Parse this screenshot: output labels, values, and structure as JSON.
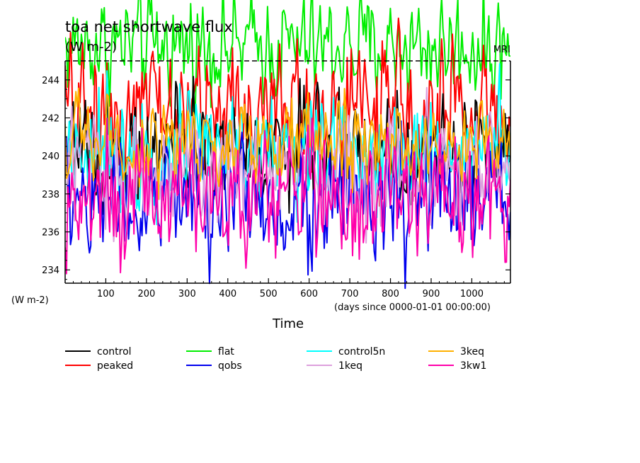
{
  "chart_data": {
    "type": "line",
    "title": "toa net shortwave flux",
    "subtitle": "(W m-2)",
    "model_label": "MRI",
    "ylabel": "(W m-2)",
    "xlabel": "Time",
    "x_unit_note": "(days since 0000-01-01 00:00:00)",
    "xlim": [
      0,
      1095
    ],
    "ylim": [
      233.3,
      245.0
    ],
    "x_ticks": [
      100,
      200,
      300,
      400,
      500,
      600,
      700,
      800,
      900,
      1000
    ],
    "y_ticks": [
      234,
      236,
      238,
      240,
      242,
      244
    ],
    "reference_line": 245,
    "legend_placement": "bottom",
    "series": [
      {
        "name": "control",
        "color": "#000000",
        "mean": 240.3,
        "spread": 1.6,
        "clip_top": false
      },
      {
        "name": "peaked",
        "color": "#ff0000",
        "mean": 242.4,
        "spread": 2.0,
        "clip_top": true
      },
      {
        "name": "flat",
        "color": "#00ee00",
        "mean": 245.8,
        "spread": 1.6,
        "clip_top": true
      },
      {
        "name": "qobs",
        "color": "#0000ee",
        "mean": 237.6,
        "spread": 1.9,
        "clip_top": false
      },
      {
        "name": "control5n",
        "color": "#00ffff",
        "mean": 240.5,
        "spread": 1.7,
        "clip_top": false
      },
      {
        "name": "1keq",
        "color": "#dda0dd",
        "mean": 239.3,
        "spread": 1.8,
        "clip_top": false
      },
      {
        "name": "3keq",
        "color": "#ffb000",
        "mean": 240.6,
        "spread": 1.3,
        "clip_top": false
      },
      {
        "name": "3kw1",
        "color": "#ff00aa",
        "mean": 237.9,
        "spread": 1.8,
        "clip_top": false
      }
    ]
  }
}
